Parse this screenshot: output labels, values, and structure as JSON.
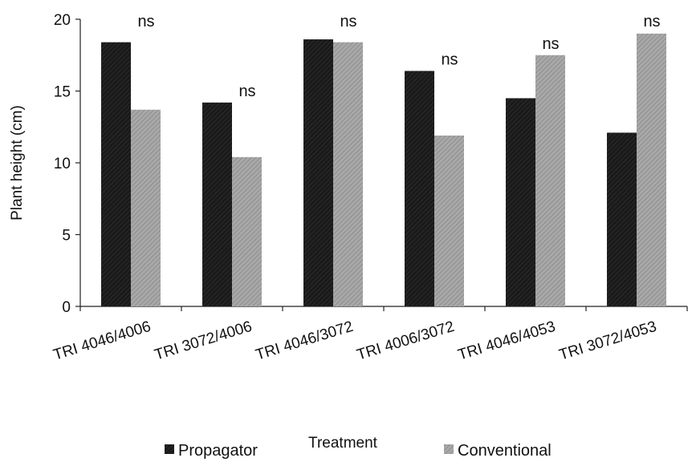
{
  "chart_data": {
    "type": "bar",
    "xlabel": "Treatment",
    "ylabel": "Plant height (cm)",
    "ylim": [
      0,
      20
    ],
    "yticks": [
      0,
      5,
      10,
      15,
      20
    ],
    "categories": [
      "TRI 4046/4006",
      "TRI 3072/4006",
      "TRI 4046/3072",
      "TRI 4006/3072",
      "TRI 4046/4053",
      "TRI 3072/4053"
    ],
    "series": [
      {
        "name": "Propagator",
        "values": [
          18.4,
          14.2,
          18.6,
          16.4,
          14.5,
          12.1
        ],
        "color": "#1a1a1a"
      },
      {
        "name": "Conventional",
        "values": [
          13.7,
          10.4,
          18.4,
          11.9,
          17.5,
          19.0
        ],
        "color": "#9a9a9a"
      }
    ],
    "annotations": [
      "ns",
      "ns",
      "ns",
      "ns",
      "ns",
      "ns"
    ],
    "legend": "bottom",
    "grid": false
  }
}
